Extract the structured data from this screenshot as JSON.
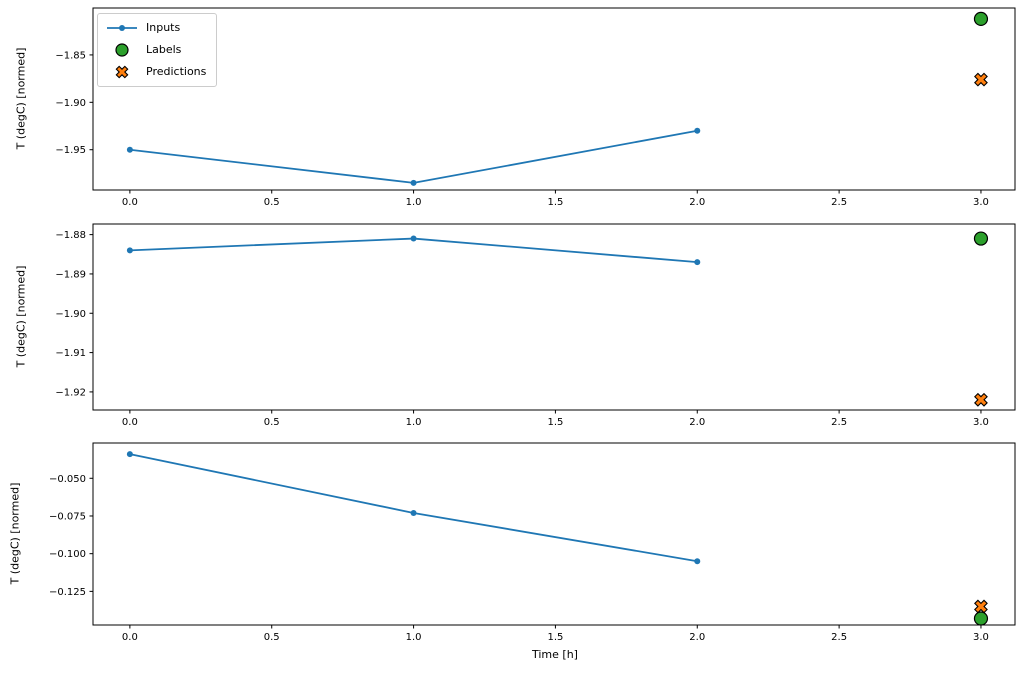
{
  "figure": {
    "xlabel": "Time [h]",
    "ylabel": "T (degC) [normed]",
    "colors": {
      "inputs": "#1f77b4",
      "labels": "#2ca02c",
      "predictions": "#ff7f0e",
      "marker_edge": "#000000",
      "spine": "#000000",
      "legend_border": "#cccccc"
    },
    "legend": {
      "position": "upper left",
      "items": [
        {
          "label": "Inputs",
          "type": "line-dot"
        },
        {
          "label": "Labels",
          "type": "circle"
        },
        {
          "label": "Predictions",
          "type": "x"
        }
      ]
    }
  },
  "chart_data": [
    {
      "type": "line",
      "panel": "top",
      "ylabel": "T (degC) [normed]",
      "xlim": [
        -0.13,
        3.12
      ],
      "ylim": [
        -1.9925,
        -1.8005
      ],
      "xticks": [
        0.0,
        0.5,
        1.0,
        1.5,
        2.0,
        2.5,
        3.0
      ],
      "xtick_labels": [
        "0.0",
        "0.5",
        "1.0",
        "1.5",
        "2.0",
        "2.5",
        "3.0"
      ],
      "yticks": [
        -1.85,
        -1.9,
        -1.95
      ],
      "ytick_labels": [
        "−1.85",
        "−1.90",
        "−1.95"
      ],
      "grid": false,
      "series": [
        {
          "name": "Inputs",
          "kind": "line",
          "x": [
            0,
            1,
            2
          ],
          "y": [
            -1.95,
            -1.985,
            -1.93
          ]
        },
        {
          "name": "Labels",
          "kind": "scatter-circle",
          "x": [
            3
          ],
          "y": [
            -1.812
          ]
        },
        {
          "name": "Predictions",
          "kind": "scatter-x",
          "x": [
            3
          ],
          "y": [
            -1.876
          ]
        }
      ]
    },
    {
      "type": "line",
      "panel": "middle",
      "ylabel": "T (degC) [normed]",
      "xlim": [
        -0.13,
        3.12
      ],
      "ylim": [
        -1.9246,
        -1.8773
      ],
      "xticks": [
        0.0,
        0.5,
        1.0,
        1.5,
        2.0,
        2.5,
        3.0
      ],
      "xtick_labels": [
        "0.0",
        "0.5",
        "1.0",
        "1.5",
        "2.0",
        "2.5",
        "3.0"
      ],
      "yticks": [
        -1.88,
        -1.89,
        -1.9,
        -1.91,
        -1.92
      ],
      "ytick_labels": [
        "−1.88",
        "−1.89",
        "−1.90",
        "−1.91",
        "−1.92"
      ],
      "grid": false,
      "series": [
        {
          "name": "Inputs",
          "kind": "line",
          "x": [
            0,
            1,
            2
          ],
          "y": [
            -1.884,
            -1.881,
            -1.887
          ]
        },
        {
          "name": "Labels",
          "kind": "scatter-circle",
          "x": [
            3
          ],
          "y": [
            -1.881
          ]
        },
        {
          "name": "Predictions",
          "kind": "scatter-x",
          "x": [
            3
          ],
          "y": [
            -1.922
          ]
        }
      ]
    },
    {
      "type": "line",
      "panel": "bottom",
      "ylabel": "T (degC) [normed]",
      "xlabel": "Time [h]",
      "xlim": [
        -0.13,
        3.12
      ],
      "ylim": [
        -0.1473,
        -0.0266
      ],
      "xticks": [
        0.0,
        0.5,
        1.0,
        1.5,
        2.0,
        2.5,
        3.0
      ],
      "xtick_labels": [
        "0.0",
        "0.5",
        "1.0",
        "1.5",
        "2.0",
        "2.5",
        "3.0"
      ],
      "yticks": [
        -0.05,
        -0.075,
        -0.1,
        -0.125
      ],
      "ytick_labels": [
        "−0.050",
        "−0.075",
        "−0.100",
        "−0.125"
      ],
      "grid": false,
      "series": [
        {
          "name": "Inputs",
          "kind": "line",
          "x": [
            0,
            1,
            2
          ],
          "y": [
            -0.034,
            -0.073,
            -0.105
          ]
        },
        {
          "name": "Labels",
          "kind": "scatter-circle",
          "x": [
            3
          ],
          "y": [
            -0.143
          ]
        },
        {
          "name": "Predictions",
          "kind": "scatter-x",
          "x": [
            3
          ],
          "y": [
            -0.135
          ]
        }
      ]
    }
  ]
}
